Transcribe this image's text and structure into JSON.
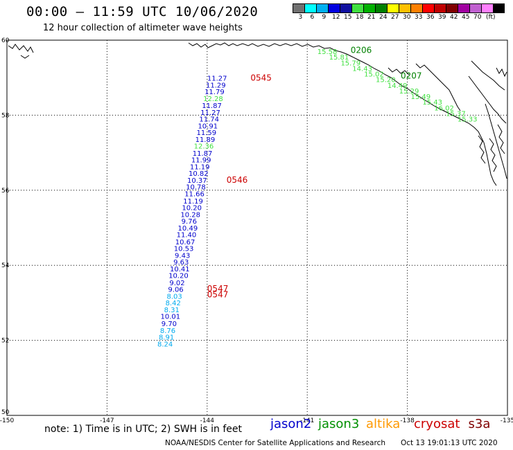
{
  "header": {
    "title": "00:00 – 11:59 UTC 10/06/2020",
    "subtitle": "12 hour collection of altimeter wave heights"
  },
  "color_scale": {
    "colors": [
      "#707070",
      "#00ffff",
      "#00b0f0",
      "#0000e0",
      "#1010a0",
      "#40e040",
      "#00b000",
      "#008000",
      "#ffff00",
      "#ffc000",
      "#ff8000",
      "#ff0000",
      "#c00000",
      "#800000",
      "#a000a0",
      "#c060d0",
      "#ff80ff",
      "#000000"
    ],
    "labels": [
      "3",
      "6",
      "9",
      "12",
      "15",
      "18",
      "21",
      "24",
      "27",
      "30",
      "33",
      "36",
      "39",
      "42",
      "45",
      "70",
      "(ft)"
    ]
  },
  "map": {
    "lat_labels": [
      "60",
      "58",
      "56",
      "54",
      "52",
      "50"
    ],
    "lon_labels": [
      "-150",
      "-147",
      "-144",
      "-141",
      "-138",
      "-135"
    ]
  },
  "chart_data": {
    "type": "scatter",
    "x_axis": "longitude",
    "y_axis": "latitude",
    "xlim": [
      -150,
      -135
    ],
    "ylim": [
      50,
      60
    ],
    "tracks": [
      {
        "name": "jason2",
        "color": "#0000cc",
        "points": [
          {
            "lat": 58.92,
            "lon": -143.7,
            "v": "11.27",
            "c": "#0000cc"
          },
          {
            "lat": 58.74,
            "lon": -143.74,
            "v": "11.29",
            "c": "#0000cc"
          },
          {
            "lat": 58.56,
            "lon": -143.78,
            "v": "11.79",
            "c": "#0000cc"
          },
          {
            "lat": 58.38,
            "lon": -143.82,
            "v": "12.28",
            "c": "#40e040"
          },
          {
            "lat": 58.19,
            "lon": -143.86,
            "v": "11.87",
            "c": "#0000cc"
          },
          {
            "lat": 58.01,
            "lon": -143.9,
            "v": "11.27",
            "c": "#0000cc"
          },
          {
            "lat": 57.83,
            "lon": -143.94,
            "v": "11.74",
            "c": "#0000cc"
          },
          {
            "lat": 57.65,
            "lon": -143.98,
            "v": "10.91",
            "c": "#0000cc"
          },
          {
            "lat": 57.47,
            "lon": -144.02,
            "v": "11.59",
            "c": "#0000cc"
          },
          {
            "lat": 57.29,
            "lon": -144.06,
            "v": "11.89",
            "c": "#0000cc"
          },
          {
            "lat": 57.11,
            "lon": -144.1,
            "v": "12.36",
            "c": "#40e040"
          },
          {
            "lat": 56.92,
            "lon": -144.14,
            "v": "11.87",
            "c": "#0000cc"
          },
          {
            "lat": 56.74,
            "lon": -144.18,
            "v": "11.99",
            "c": "#0000cc"
          },
          {
            "lat": 56.56,
            "lon": -144.22,
            "v": "11.19",
            "c": "#0000cc"
          },
          {
            "lat": 56.38,
            "lon": -144.26,
            "v": "10.82",
            "c": "#0000cc"
          },
          {
            "lat": 56.2,
            "lon": -144.3,
            "v": "10.37",
            "c": "#0000cc"
          },
          {
            "lat": 56.02,
            "lon": -144.34,
            "v": "10.78",
            "c": "#0000cc"
          },
          {
            "lat": 55.84,
            "lon": -144.38,
            "v": "11.66",
            "c": "#0000cc"
          },
          {
            "lat": 55.65,
            "lon": -144.42,
            "v": "11.19",
            "c": "#0000cc"
          },
          {
            "lat": 55.47,
            "lon": -144.46,
            "v": "10.20",
            "c": "#0000cc"
          },
          {
            "lat": 55.29,
            "lon": -144.5,
            "v": "10.28",
            "c": "#0000cc"
          },
          {
            "lat": 55.11,
            "lon": -144.54,
            "v": "9.76",
            "c": "#0000cc"
          },
          {
            "lat": 54.93,
            "lon": -144.58,
            "v": "10.49",
            "c": "#0000cc"
          },
          {
            "lat": 54.75,
            "lon": -144.62,
            "v": "11.40",
            "c": "#0000cc"
          },
          {
            "lat": 54.56,
            "lon": -144.66,
            "v": "10.67",
            "c": "#0000cc"
          },
          {
            "lat": 54.38,
            "lon": -144.7,
            "v": "10.53",
            "c": "#0000cc"
          },
          {
            "lat": 54.2,
            "lon": -144.74,
            "v": "9.43",
            "c": "#0000cc"
          },
          {
            "lat": 54.02,
            "lon": -144.78,
            "v": "9.63",
            "c": "#0000cc"
          },
          {
            "lat": 53.84,
            "lon": -144.82,
            "v": "10.41",
            "c": "#0000cc"
          },
          {
            "lat": 53.66,
            "lon": -144.86,
            "v": "10.20",
            "c": "#0000cc"
          },
          {
            "lat": 53.47,
            "lon": -144.9,
            "v": "9.02",
            "c": "#0000cc"
          },
          {
            "lat": 53.29,
            "lon": -144.94,
            "v": "9.06",
            "c": "#0000cc"
          },
          {
            "lat": 53.11,
            "lon": -144.98,
            "v": "8.03",
            "c": "#00aaee"
          },
          {
            "lat": 52.93,
            "lon": -145.02,
            "v": "8.42",
            "c": "#00aaee"
          },
          {
            "lat": 52.75,
            "lon": -145.06,
            "v": "8.31",
            "c": "#00aaee"
          },
          {
            "lat": 52.57,
            "lon": -145.1,
            "v": "10.01",
            "c": "#0000cc"
          },
          {
            "lat": 52.38,
            "lon": -145.14,
            "v": "9.70",
            "c": "#0000cc"
          },
          {
            "lat": 52.2,
            "lon": -145.18,
            "v": "8.76",
            "c": "#00aaee"
          },
          {
            "lat": 52.02,
            "lon": -145.22,
            "v": "8.91",
            "c": "#00aaee"
          },
          {
            "lat": 51.84,
            "lon": -145.26,
            "v": "8.24",
            "c": "#00aaee"
          }
        ]
      },
      {
        "name": "jason3",
        "color": "#008000",
        "points": [
          {
            "lat": 59.63,
            "lon": -140.4,
            "v": "15.58",
            "c": "#40e040"
          },
          {
            "lat": 59.48,
            "lon": -140.05,
            "v": "15.81",
            "c": "#40e040"
          },
          {
            "lat": 59.33,
            "lon": -139.7,
            "v": "15.79",
            "c": "#40e040"
          },
          {
            "lat": 59.18,
            "lon": -139.35,
            "v": "14.43",
            "c": "#40e040"
          },
          {
            "lat": 59.03,
            "lon": -139.0,
            "v": "15.02",
            "c": "#40e040"
          },
          {
            "lat": 58.88,
            "lon": -138.65,
            "v": "15.20",
            "c": "#40e040"
          },
          {
            "lat": 58.73,
            "lon": -138.3,
            "v": "14.49",
            "c": "#40e040"
          },
          {
            "lat": 58.58,
            "lon": -137.95,
            "v": "15.29",
            "c": "#40e040"
          },
          {
            "lat": 58.43,
            "lon": -137.6,
            "v": "15.49",
            "c": "#40e040"
          },
          {
            "lat": 58.28,
            "lon": -137.25,
            "v": "15.43",
            "c": "#40e040"
          },
          {
            "lat": 58.13,
            "lon": -136.9,
            "v": "16.02",
            "c": "#40e040"
          },
          {
            "lat": 57.98,
            "lon": -136.55,
            "v": "15.37",
            "c": "#40e040"
          },
          {
            "lat": 57.83,
            "lon": -136.2,
            "v": "15.33",
            "c": "#40e040"
          }
        ]
      }
    ],
    "time_labels": [
      {
        "text": "0545",
        "lat": 58.92,
        "lon": -142.7,
        "color": "#cc0000"
      },
      {
        "text": "0546",
        "lat": 56.2,
        "lon": -143.42,
        "color": "#cc0000"
      },
      {
        "text": "0547",
        "lat": 53.3,
        "lon": -144.0,
        "color": "#cc0000"
      },
      {
        "text": "0547",
        "lat": 53.15,
        "lon": -144.0,
        "color": "#cc0000"
      },
      {
        "text": "0206",
        "lat": 59.66,
        "lon": -139.7,
        "color": "#008000"
      },
      {
        "text": "0207",
        "lat": 58.98,
        "lon": -138.2,
        "color": "#008000"
      }
    ]
  },
  "footer": {
    "note": "note: 1) Time is in UTC; 2) SWH is in feet",
    "legend": [
      {
        "name": "jason2",
        "color": "#0000cc"
      },
      {
        "name": "jason3",
        "color": "#009000"
      },
      {
        "name": "altika",
        "color": "#ff9900"
      },
      {
        "name": "cryosat",
        "color": "#cc0000"
      },
      {
        "name": "s3a",
        "color": "#800000"
      }
    ],
    "credit": "NOAA/NESDIS Center for Satellite Applications and Research",
    "timestamp": "Oct 13 19:01:13 UTC 2020"
  }
}
